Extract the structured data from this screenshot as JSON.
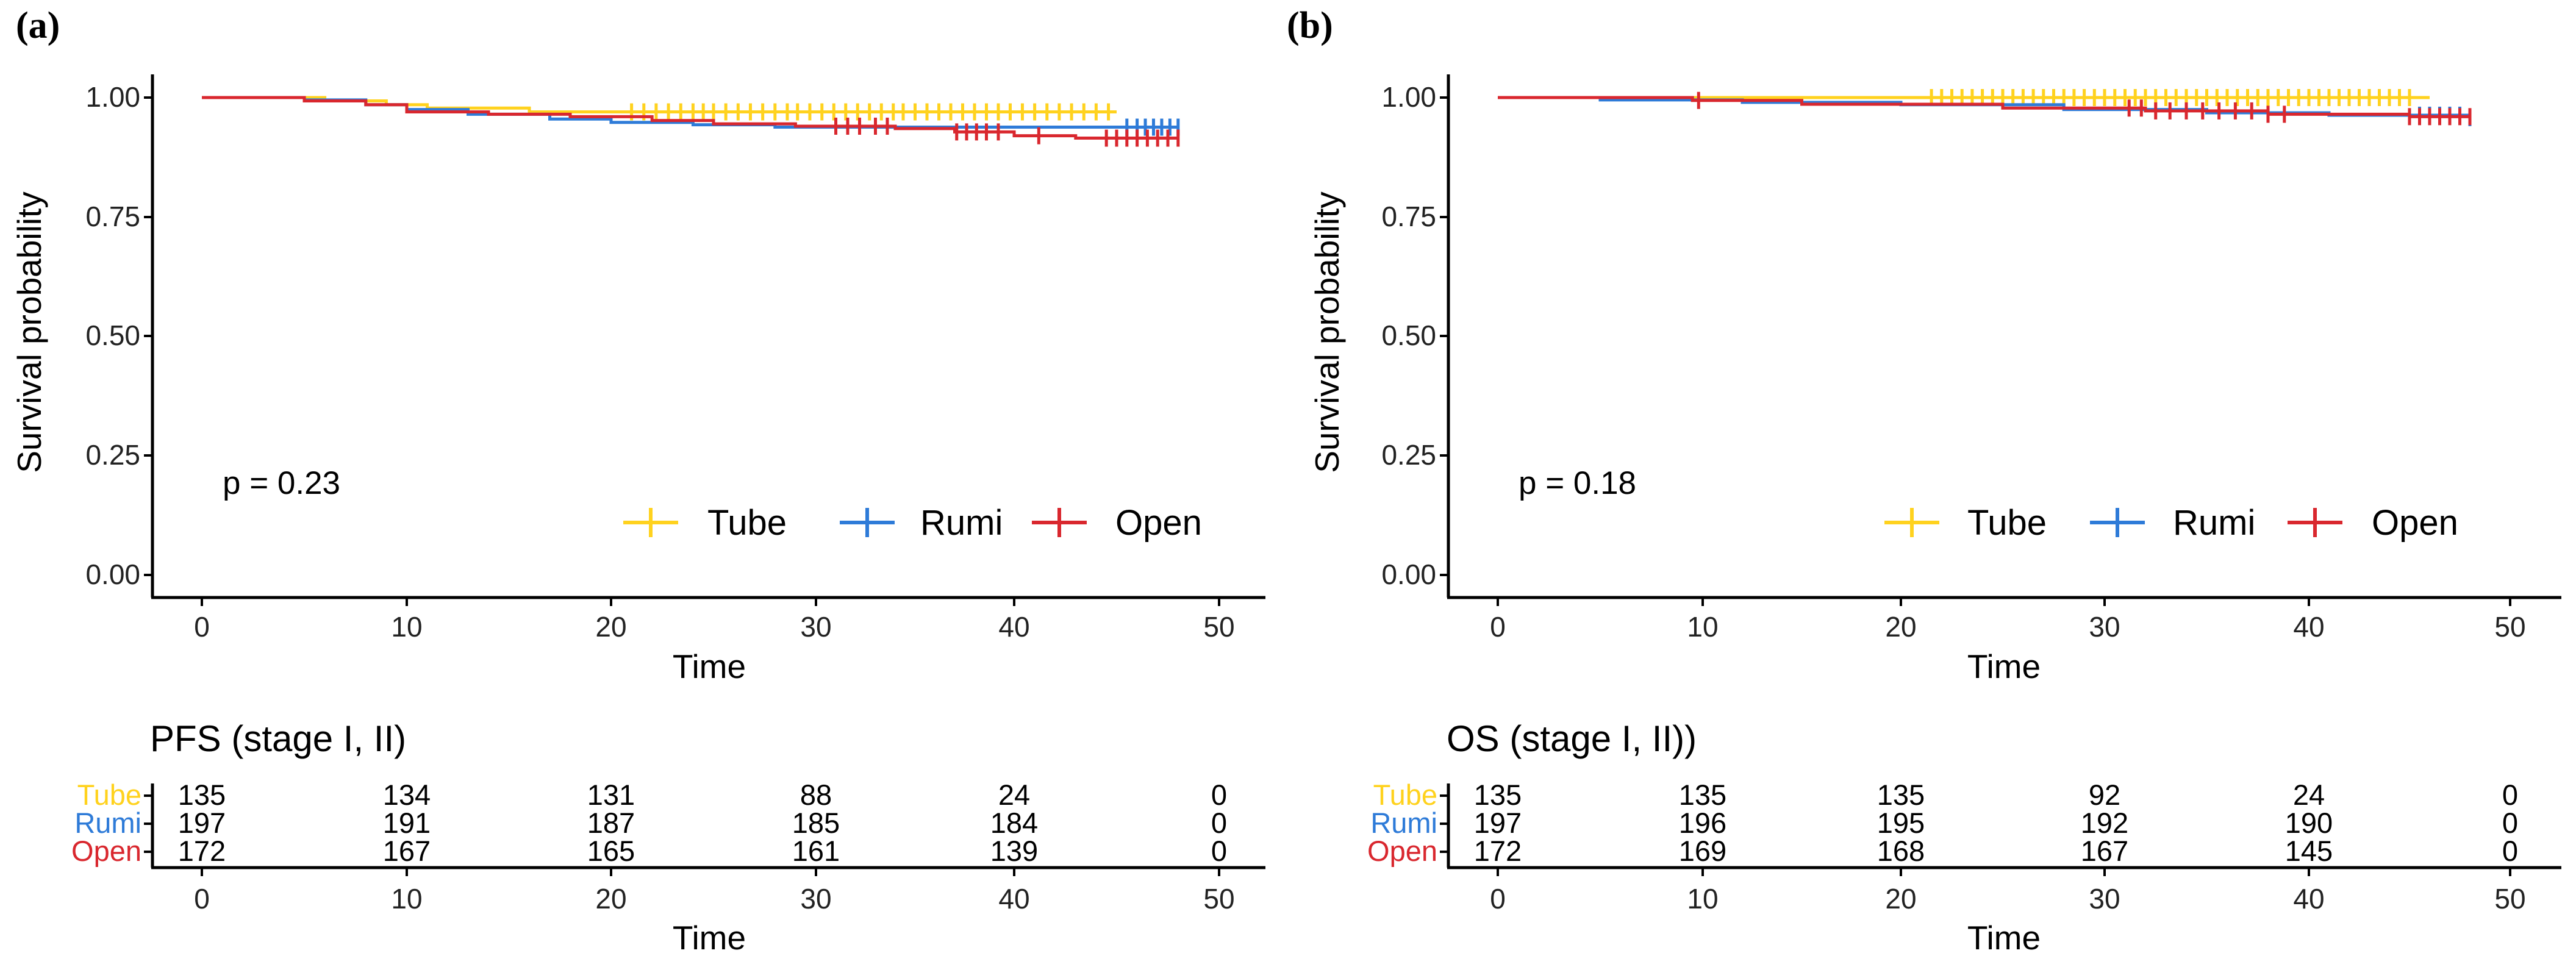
{
  "chart_data": [
    {
      "type": "line",
      "subtype": "kaplan-meier",
      "panel_label": "(a)",
      "ylabel": "Survival probability",
      "xlabel": "Time",
      "xlim": [
        0,
        50
      ],
      "ylim": [
        0,
        1
      ],
      "x_ticks": [
        0,
        10,
        20,
        30,
        40,
        50
      ],
      "y_ticks": [
        0,
        0.25,
        0.5,
        0.75,
        1
      ],
      "y_tick_labels": [
        "0.00",
        "0.25",
        "0.50",
        "0.75",
        "1.00"
      ],
      "pvalue_text": "p = 0.23",
      "legend": [
        "Tube",
        "Rumi",
        "Open"
      ],
      "series": [
        {
          "name": "Tube",
          "color": "#FFD21E",
          "steps": [
            [
              0,
              1.0
            ],
            [
              6,
              0.993
            ],
            [
              9,
              0.985
            ],
            [
              11,
              0.978
            ],
            [
              16,
              0.97
            ],
            [
              22,
              0.97
            ],
            [
              45,
              0.97
            ]
          ],
          "censor_times": [
            21,
            21.6,
            22.2,
            22.8,
            23.4,
            24,
            24.5,
            25,
            25.6,
            26.2,
            26.8,
            27.4,
            28,
            28.6,
            29.1,
            29.7,
            30.3,
            30.9,
            31.5,
            32.1,
            32.7,
            33.3,
            33.9,
            34.4,
            35,
            35.6,
            36.2,
            36.8,
            37.4,
            38,
            38.6,
            39.2,
            39.8,
            40.4,
            41,
            41.6,
            42.2,
            42.8,
            43.4,
            44,
            44.6
          ]
        },
        {
          "name": "Rumi",
          "color": "#2E7BD8",
          "steps": [
            [
              0,
              1.0
            ],
            [
              5,
              0.995
            ],
            [
              8,
              0.985
            ],
            [
              10,
              0.975
            ],
            [
              13,
              0.965
            ],
            [
              17,
              0.955
            ],
            [
              20,
              0.948
            ],
            [
              24,
              0.943
            ],
            [
              28,
              0.938
            ],
            [
              48,
              0.938
            ]
          ],
          "censor_times": [
            45.5,
            46,
            46.4,
            46.8,
            47.2,
            47.6,
            48
          ]
        },
        {
          "name": "Open",
          "color": "#D9272E",
          "steps": [
            [
              0,
              1.0
            ],
            [
              5,
              0.993
            ],
            [
              8,
              0.985
            ],
            [
              10,
              0.97
            ],
            [
              14,
              0.965
            ],
            [
              18,
              0.96
            ],
            [
              22,
              0.952
            ],
            [
              25,
              0.945
            ],
            [
              29,
              0.94
            ],
            [
              34,
              0.935
            ],
            [
              37,
              0.928
            ],
            [
              40,
              0.92
            ],
            [
              43,
              0.915
            ],
            [
              48,
              0.915
            ]
          ],
          "censor_times": [
            31,
            31.6,
            32.2,
            33,
            33.6,
            37.1,
            37.6,
            38.1,
            38.6,
            39.2,
            41.2,
            44.5,
            45,
            45.5,
            46,
            46.5,
            47,
            47.5,
            48
          ]
        }
      ],
      "risk_table": {
        "title": "PFS (stage I, II)",
        "times": [
          0,
          10,
          20,
          30,
          40,
          50
        ],
        "rows": [
          {
            "name": "Tube",
            "color": "#FFD21E",
            "values": [
              135,
              134,
              131,
              88,
              24,
              0
            ]
          },
          {
            "name": "Rumi",
            "color": "#2E7BD8",
            "values": [
              197,
              191,
              187,
              185,
              184,
              0
            ]
          },
          {
            "name": "Open",
            "color": "#D9272E",
            "values": [
              172,
              167,
              165,
              161,
              139,
              0
            ]
          }
        ],
        "xlabel": "Time"
      }
    },
    {
      "type": "line",
      "subtype": "kaplan-meier",
      "panel_label": "(b)",
      "ylabel": "Survival probability",
      "xlabel": "Time",
      "xlim": [
        0,
        50
      ],
      "ylim": [
        0,
        1
      ],
      "x_ticks": [
        0,
        10,
        20,
        30,
        40,
        50
      ],
      "y_ticks": [
        0,
        0.25,
        0.5,
        0.75,
        1
      ],
      "y_tick_labels": [
        "0.00",
        "0.25",
        "0.50",
        "0.75",
        "1.00"
      ],
      "pvalue_text": "p = 0.18",
      "legend": [
        "Tube",
        "Rumi",
        "Open"
      ],
      "series": [
        {
          "name": "Tube",
          "color": "#FFD21E",
          "steps": [
            [
              0,
              1.0
            ],
            [
              46,
              1.0
            ]
          ],
          "censor_times": [
            21.5,
            22,
            22.5,
            23,
            23.5,
            24,
            24.5,
            25,
            25.5,
            26,
            26.5,
            27,
            27.5,
            28,
            28.5,
            29,
            29.5,
            30,
            30.5,
            31,
            31.5,
            32,
            32.5,
            33,
            33.5,
            34,
            34.5,
            35,
            35.5,
            36,
            36.5,
            37,
            37.5,
            38,
            38.5,
            39,
            39.5,
            40,
            40.5,
            41,
            41.5,
            42,
            42.5,
            43,
            43.5,
            44,
            44.5,
            45
          ]
        },
        {
          "name": "Rumi",
          "color": "#2E7BD8",
          "steps": [
            [
              0,
              1.0
            ],
            [
              5,
              0.995
            ],
            [
              12,
              0.99
            ],
            [
              20,
              0.985
            ],
            [
              28,
              0.975
            ],
            [
              35,
              0.968
            ],
            [
              41,
              0.963
            ],
            [
              48,
              0.958
            ]
          ],
          "censor_times": [
            45.5,
            46,
            46.5,
            47,
            47.5,
            48
          ]
        },
        {
          "name": "Open",
          "color": "#D9272E",
          "steps": [
            [
              0,
              1.0
            ],
            [
              9.5,
              0.994
            ],
            [
              15,
              0.986
            ],
            [
              25,
              0.978
            ],
            [
              32,
              0.972
            ],
            [
              38,
              0.965
            ],
            [
              45,
              0.96
            ],
            [
              48,
              0.96
            ]
          ],
          "censor_times": [
            9.8,
            31.2,
            31.8,
            32.5,
            33.2,
            34,
            34.8,
            35.6,
            36.4,
            37.2,
            38,
            38.8,
            45,
            45.5,
            46,
            46.5,
            47,
            47.5,
            48
          ]
        }
      ],
      "risk_table": {
        "title": "OS (stage I, II))",
        "times": [
          0,
          10,
          20,
          30,
          40,
          50
        ],
        "rows": [
          {
            "name": "Tube",
            "color": "#FFD21E",
            "values": [
              135,
              135,
              135,
              92,
              24,
              0
            ]
          },
          {
            "name": "Rumi",
            "color": "#2E7BD8",
            "values": [
              197,
              196,
              195,
              192,
              190,
              0
            ]
          },
          {
            "name": "Open",
            "color": "#D9272E",
            "values": [
              172,
              169,
              168,
              167,
              145,
              0
            ]
          }
        ],
        "xlabel": "Time"
      }
    }
  ]
}
